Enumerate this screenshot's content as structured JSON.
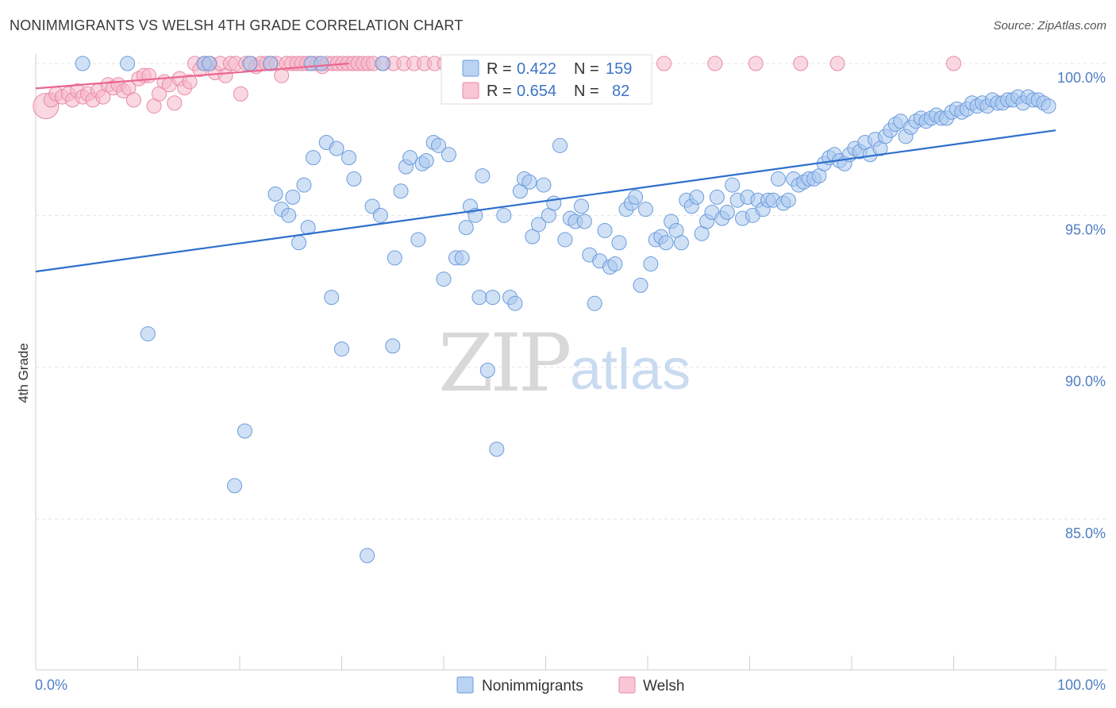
{
  "header": {
    "title": "NONIMMIGRANTS VS WELSH 4TH GRADE CORRELATION CHART",
    "source": "Source: ZipAtlas.com"
  },
  "watermark": {
    "zip": "ZIP",
    "atlas": "atlas"
  },
  "legend_top": {
    "rows": [
      {
        "r_label": "R = ",
        "r_value": "0.422",
        "n_label": "N = ",
        "n_value": "159",
        "color": "#a9c8ef"
      },
      {
        "r_label": "R = ",
        "r_value": "0.654",
        "n_label": "N = ",
        "n_value": "82",
        "color": "#f6b8c9"
      }
    ]
  },
  "legend_bottom": {
    "items": [
      {
        "label": "Nonimmigrants",
        "color": "#a9c8ef"
      },
      {
        "label": "Welsh",
        "color": "#f6b8c9"
      }
    ]
  },
  "chart_data": {
    "type": "scatter",
    "title": "NONIMMIGRANTS VS WELSH 4TH GRADE CORRELATION CHART",
    "xlabel": "",
    "ylabel": "4th Grade",
    "xlim": [
      0,
      100
    ],
    "ylim": [
      80.0,
      100.3
    ],
    "x_tick_labels": [
      {
        "value": 0,
        "label": "0.0%"
      },
      {
        "value": 100,
        "label": "100.0%"
      }
    ],
    "y_tick_labels": [
      {
        "value": 100,
        "label": "100.0%"
      },
      {
        "value": 95,
        "label": "95.0%"
      },
      {
        "value": 90,
        "label": "90.0%"
      },
      {
        "value": 85,
        "label": "85.0%"
      }
    ],
    "x_minor_ticks": [
      10,
      20,
      30,
      40,
      50,
      60,
      70,
      80,
      90,
      100
    ],
    "grid": true,
    "legend_position": "top-center",
    "series": [
      {
        "name": "Nonimmigrants",
        "color": "#a9c8ef",
        "stroke": "#6b9bdc",
        "trend": {
          "x": [
            0,
            100
          ],
          "y": [
            93.15,
            97.8
          ],
          "color": "#2e6fcc"
        },
        "points": [
          [
            4.6,
            100
          ],
          [
            9.0,
            100
          ],
          [
            16.5,
            100
          ],
          [
            17.0,
            100
          ],
          [
            21.0,
            100
          ],
          [
            23.0,
            100
          ],
          [
            27.0,
            100
          ],
          [
            28.0,
            100
          ],
          [
            34.0,
            100
          ],
          [
            11.0,
            91.1
          ],
          [
            19.5,
            86.1
          ],
          [
            20.5,
            87.9
          ],
          [
            23.5,
            95.7
          ],
          [
            24.1,
            95.2
          ],
          [
            24.8,
            95.0
          ],
          [
            25.2,
            95.6
          ],
          [
            25.8,
            94.1
          ],
          [
            26.3,
            96.0
          ],
          [
            26.7,
            94.6
          ],
          [
            27.2,
            96.9
          ],
          [
            28.5,
            97.4
          ],
          [
            29.5,
            97.2
          ],
          [
            29.0,
            92.3
          ],
          [
            30.0,
            90.6
          ],
          [
            30.7,
            96.9
          ],
          [
            31.2,
            96.2
          ],
          [
            32.5,
            83.8
          ],
          [
            33.0,
            95.3
          ],
          [
            33.8,
            95.0
          ],
          [
            35.0,
            90.7
          ],
          [
            35.2,
            93.6
          ],
          [
            35.8,
            95.8
          ],
          [
            36.3,
            96.6
          ],
          [
            36.7,
            96.9
          ],
          [
            37.5,
            94.2
          ],
          [
            37.9,
            96.7
          ],
          [
            38.3,
            96.8
          ],
          [
            39.0,
            97.4
          ],
          [
            39.5,
            97.3
          ],
          [
            40.0,
            92.9
          ],
          [
            40.5,
            97.0
          ],
          [
            41.2,
            93.6
          ],
          [
            41.8,
            93.6
          ],
          [
            42.2,
            94.6
          ],
          [
            42.6,
            95.3
          ],
          [
            43.1,
            95.0
          ],
          [
            43.5,
            92.3
          ],
          [
            43.8,
            96.3
          ],
          [
            44.3,
            89.9
          ],
          [
            44.8,
            92.3
          ],
          [
            45.2,
            87.3
          ],
          [
            45.9,
            95.0
          ],
          [
            46.5,
            92.3
          ],
          [
            47.0,
            92.1
          ],
          [
            47.5,
            95.8
          ],
          [
            47.9,
            96.2
          ],
          [
            48.4,
            96.1
          ],
          [
            48.7,
            94.3
          ],
          [
            49.3,
            94.7
          ],
          [
            49.8,
            96.0
          ],
          [
            50.3,
            95.0
          ],
          [
            50.8,
            95.4
          ],
          [
            51.4,
            97.3
          ],
          [
            51.9,
            94.2
          ],
          [
            52.4,
            94.9
          ],
          [
            52.9,
            94.8
          ],
          [
            53.5,
            95.3
          ],
          [
            53.8,
            94.8
          ],
          [
            54.3,
            93.7
          ],
          [
            54.8,
            92.1
          ],
          [
            55.3,
            93.5
          ],
          [
            55.8,
            94.5
          ],
          [
            56.3,
            93.3
          ],
          [
            56.8,
            93.4
          ],
          [
            57.2,
            94.1
          ],
          [
            57.9,
            95.2
          ],
          [
            58.4,
            95.4
          ],
          [
            58.8,
            95.6
          ],
          [
            59.3,
            92.7
          ],
          [
            59.8,
            95.2
          ],
          [
            60.3,
            93.4
          ],
          [
            60.8,
            94.2
          ],
          [
            61.3,
            94.3
          ],
          [
            61.8,
            94.1
          ],
          [
            62.3,
            94.8
          ],
          [
            62.8,
            94.5
          ],
          [
            63.3,
            94.1
          ],
          [
            63.8,
            95.5
          ],
          [
            64.3,
            95.3
          ],
          [
            64.8,
            95.6
          ],
          [
            65.3,
            94.4
          ],
          [
            65.8,
            94.8
          ],
          [
            66.3,
            95.1
          ],
          [
            66.8,
            95.6
          ],
          [
            67.3,
            94.9
          ],
          [
            67.8,
            95.1
          ],
          [
            68.3,
            96.0
          ],
          [
            68.8,
            95.5
          ],
          [
            69.3,
            94.9
          ],
          [
            69.8,
            95.6
          ],
          [
            70.3,
            95.0
          ],
          [
            70.8,
            95.5
          ],
          [
            71.3,
            95.2
          ],
          [
            71.8,
            95.5
          ],
          [
            72.3,
            95.5
          ],
          [
            72.8,
            96.2
          ],
          [
            73.3,
            95.4
          ],
          [
            73.8,
            95.5
          ],
          [
            74.3,
            96.2
          ],
          [
            74.8,
            96.0
          ],
          [
            75.3,
            96.1
          ],
          [
            75.8,
            96.2
          ],
          [
            76.3,
            96.2
          ],
          [
            76.8,
            96.3
          ],
          [
            77.3,
            96.7
          ],
          [
            77.8,
            96.9
          ],
          [
            78.3,
            97.0
          ],
          [
            78.8,
            96.8
          ],
          [
            79.3,
            96.7
          ],
          [
            79.8,
            97.0
          ],
          [
            80.3,
            97.2
          ],
          [
            80.8,
            97.1
          ],
          [
            81.3,
            97.4
          ],
          [
            81.8,
            97.0
          ],
          [
            82.3,
            97.5
          ],
          [
            82.8,
            97.2
          ],
          [
            83.3,
            97.6
          ],
          [
            83.8,
            97.8
          ],
          [
            84.3,
            98.0
          ],
          [
            84.8,
            98.1
          ],
          [
            85.3,
            97.6
          ],
          [
            85.8,
            97.9
          ],
          [
            86.3,
            98.1
          ],
          [
            86.8,
            98.2
          ],
          [
            87.3,
            98.1
          ],
          [
            87.8,
            98.2
          ],
          [
            88.3,
            98.3
          ],
          [
            88.8,
            98.2
          ],
          [
            89.3,
            98.2
          ],
          [
            89.8,
            98.4
          ],
          [
            90.3,
            98.5
          ],
          [
            90.8,
            98.4
          ],
          [
            91.3,
            98.5
          ],
          [
            91.8,
            98.7
          ],
          [
            92.3,
            98.6
          ],
          [
            92.8,
            98.7
          ],
          [
            93.3,
            98.6
          ],
          [
            93.8,
            98.8
          ],
          [
            94.3,
            98.7
          ],
          [
            94.8,
            98.7
          ],
          [
            95.3,
            98.8
          ],
          [
            95.8,
            98.8
          ],
          [
            96.3,
            98.9
          ],
          [
            96.8,
            98.7
          ],
          [
            97.3,
            98.9
          ],
          [
            97.8,
            98.8
          ],
          [
            98.3,
            98.8
          ],
          [
            98.8,
            98.7
          ],
          [
            99.3,
            98.6
          ]
        ]
      },
      {
        "name": "Welsh",
        "color": "#f6b8c9",
        "stroke": "#e88aa6",
        "trend": {
          "x": [
            0,
            100
          ],
          "y": [
            99.18,
            101.85
          ],
          "color": "#e9668f"
        },
        "points": [
          [
            1.0,
            98.6
          ],
          [
            1.5,
            98.8
          ],
          [
            2.0,
            99.0
          ],
          [
            2.6,
            98.9
          ],
          [
            3.2,
            99.0
          ],
          [
            3.6,
            98.8
          ],
          [
            4.1,
            99.1
          ],
          [
            4.6,
            98.9
          ],
          [
            5.1,
            99.0
          ],
          [
            5.6,
            98.8
          ],
          [
            6.1,
            99.1
          ],
          [
            6.6,
            98.9
          ],
          [
            7.1,
            99.3
          ],
          [
            7.6,
            99.2
          ],
          [
            8.1,
            99.3
          ],
          [
            8.6,
            99.1
          ],
          [
            9.1,
            99.2
          ],
          [
            9.6,
            98.8
          ],
          [
            10.1,
            99.5
          ],
          [
            10.6,
            99.6
          ],
          [
            11.1,
            99.6
          ],
          [
            11.6,
            98.6
          ],
          [
            12.1,
            99.0
          ],
          [
            12.6,
            99.4
          ],
          [
            13.1,
            99.3
          ],
          [
            13.6,
            98.7
          ],
          [
            14.1,
            99.5
          ],
          [
            14.6,
            99.2
          ],
          [
            15.1,
            99.4
          ],
          [
            15.6,
            100
          ],
          [
            16.1,
            99.8
          ],
          [
            16.6,
            100
          ],
          [
            17.1,
            100
          ],
          [
            17.6,
            99.7
          ],
          [
            18.1,
            100
          ],
          [
            18.6,
            99.6
          ],
          [
            19.1,
            100
          ],
          [
            19.6,
            100
          ],
          [
            20.1,
            99.0
          ],
          [
            20.6,
            100
          ],
          [
            21.1,
            100
          ],
          [
            21.6,
            99.9
          ],
          [
            22.1,
            100
          ],
          [
            22.6,
            100
          ],
          [
            23.1,
            100
          ],
          [
            23.6,
            100
          ],
          [
            24.1,
            99.6
          ],
          [
            24.6,
            100
          ],
          [
            25.1,
            100
          ],
          [
            25.6,
            100
          ],
          [
            26.1,
            100
          ],
          [
            26.6,
            100
          ],
          [
            27.1,
            100
          ],
          [
            27.6,
            100
          ],
          [
            28.1,
            99.9
          ],
          [
            28.6,
            100
          ],
          [
            29.1,
            100
          ],
          [
            29.6,
            100
          ],
          [
            30.1,
            100
          ],
          [
            30.6,
            100
          ],
          [
            31.1,
            100
          ],
          [
            31.6,
            100
          ],
          [
            32.1,
            100
          ],
          [
            32.6,
            100
          ],
          [
            33.1,
            100
          ],
          [
            34.1,
            100
          ],
          [
            35.1,
            100
          ],
          [
            36.1,
            100
          ],
          [
            37.1,
            100
          ],
          [
            38.1,
            100
          ],
          [
            39.1,
            100
          ],
          [
            40.1,
            100
          ],
          [
            41.1,
            100
          ],
          [
            42.1,
            100
          ],
          [
            44.1,
            100
          ],
          [
            48.6,
            100
          ],
          [
            61.6,
            100
          ],
          [
            66.6,
            100
          ],
          [
            70.6,
            100
          ],
          [
            75.0,
            100
          ],
          [
            78.6,
            100
          ],
          [
            90.0,
            100
          ]
        ]
      }
    ]
  }
}
